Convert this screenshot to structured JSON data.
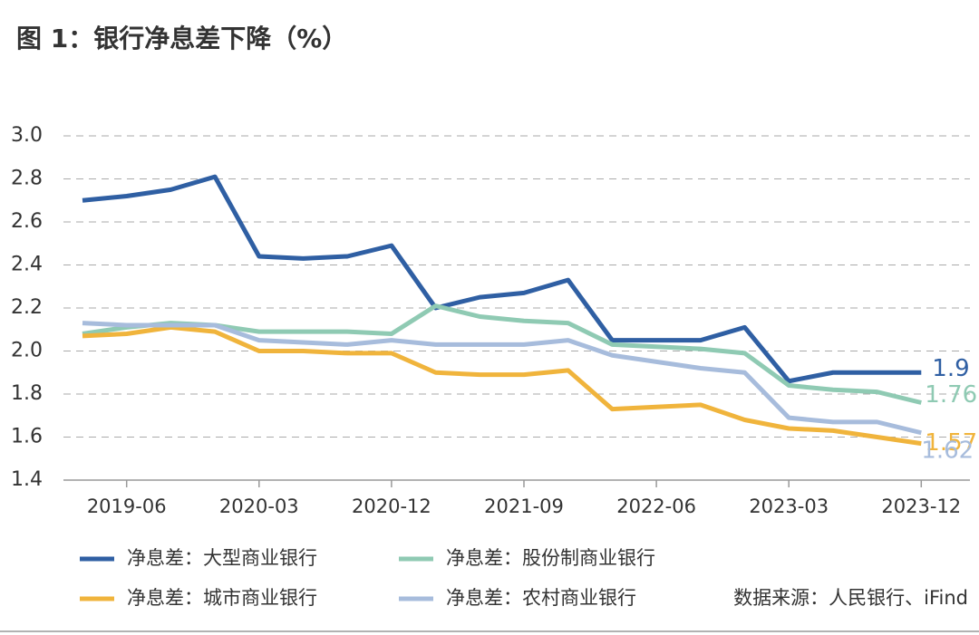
{
  "chart_data": {
    "type": "line",
    "title": "图 1：银行净息差下降（%）",
    "source": "数据来源：人民银行、iFind",
    "categories": [
      null,
      "2019-06",
      null,
      null,
      "2020-03",
      null,
      null,
      "2020-12",
      null,
      null,
      "2021-09",
      null,
      null,
      "2022-06",
      null,
      null,
      "2023-03",
      null,
      null,
      "2023-12"
    ],
    "series": [
      {
        "name": "净息差：大型商业银行",
        "color": "#2f5fa3",
        "values": [
          2.7,
          2.72,
          2.75,
          2.81,
          2.44,
          2.43,
          2.44,
          2.49,
          2.2,
          2.25,
          2.27,
          2.33,
          2.05,
          2.05,
          2.05,
          2.11,
          1.86,
          1.9,
          1.9,
          1.9
        ]
      },
      {
        "name": "净息差：股份制商业银行",
        "color": "#8fcab3",
        "values": [
          2.08,
          2.11,
          2.13,
          2.12,
          2.09,
          2.09,
          2.09,
          2.08,
          2.21,
          2.16,
          2.14,
          2.13,
          2.03,
          2.02,
          2.01,
          1.99,
          1.84,
          1.82,
          1.81,
          1.76
        ]
      },
      {
        "name": "净息差：城市商业银行",
        "color": "#f0b43c",
        "values": [
          2.07,
          2.08,
          2.11,
          2.09,
          2.0,
          2.0,
          1.99,
          1.99,
          1.9,
          1.89,
          1.89,
          1.91,
          1.73,
          1.74,
          1.75,
          1.68,
          1.64,
          1.63,
          1.6,
          1.57
        ]
      },
      {
        "name": "净息差：农村商业银行",
        "color": "#a7bcdc",
        "values": [
          2.13,
          2.12,
          2.12,
          2.12,
          2.05,
          2.04,
          2.03,
          2.05,
          2.03,
          2.03,
          2.03,
          2.05,
          1.98,
          1.95,
          1.92,
          1.9,
          1.69,
          1.67,
          1.67,
          1.62
        ]
      }
    ],
    "ylim": [
      1.4,
      3.0
    ],
    "yticks": [
      {
        "value": 1.4,
        "label": "1.4"
      },
      {
        "value": 1.6,
        "label": "1.6"
      },
      {
        "value": 1.8,
        "label": "1.8"
      },
      {
        "value": 2.0,
        "label": "2.0"
      },
      {
        "value": 2.2,
        "label": "2.2"
      },
      {
        "value": 2.4,
        "label": "2.4"
      },
      {
        "value": 2.6,
        "label": "2.6"
      },
      {
        "value": 2.8,
        "label": "2.8"
      },
      {
        "value": 3.0,
        "label": "3.0"
      }
    ],
    "grid": true
  }
}
